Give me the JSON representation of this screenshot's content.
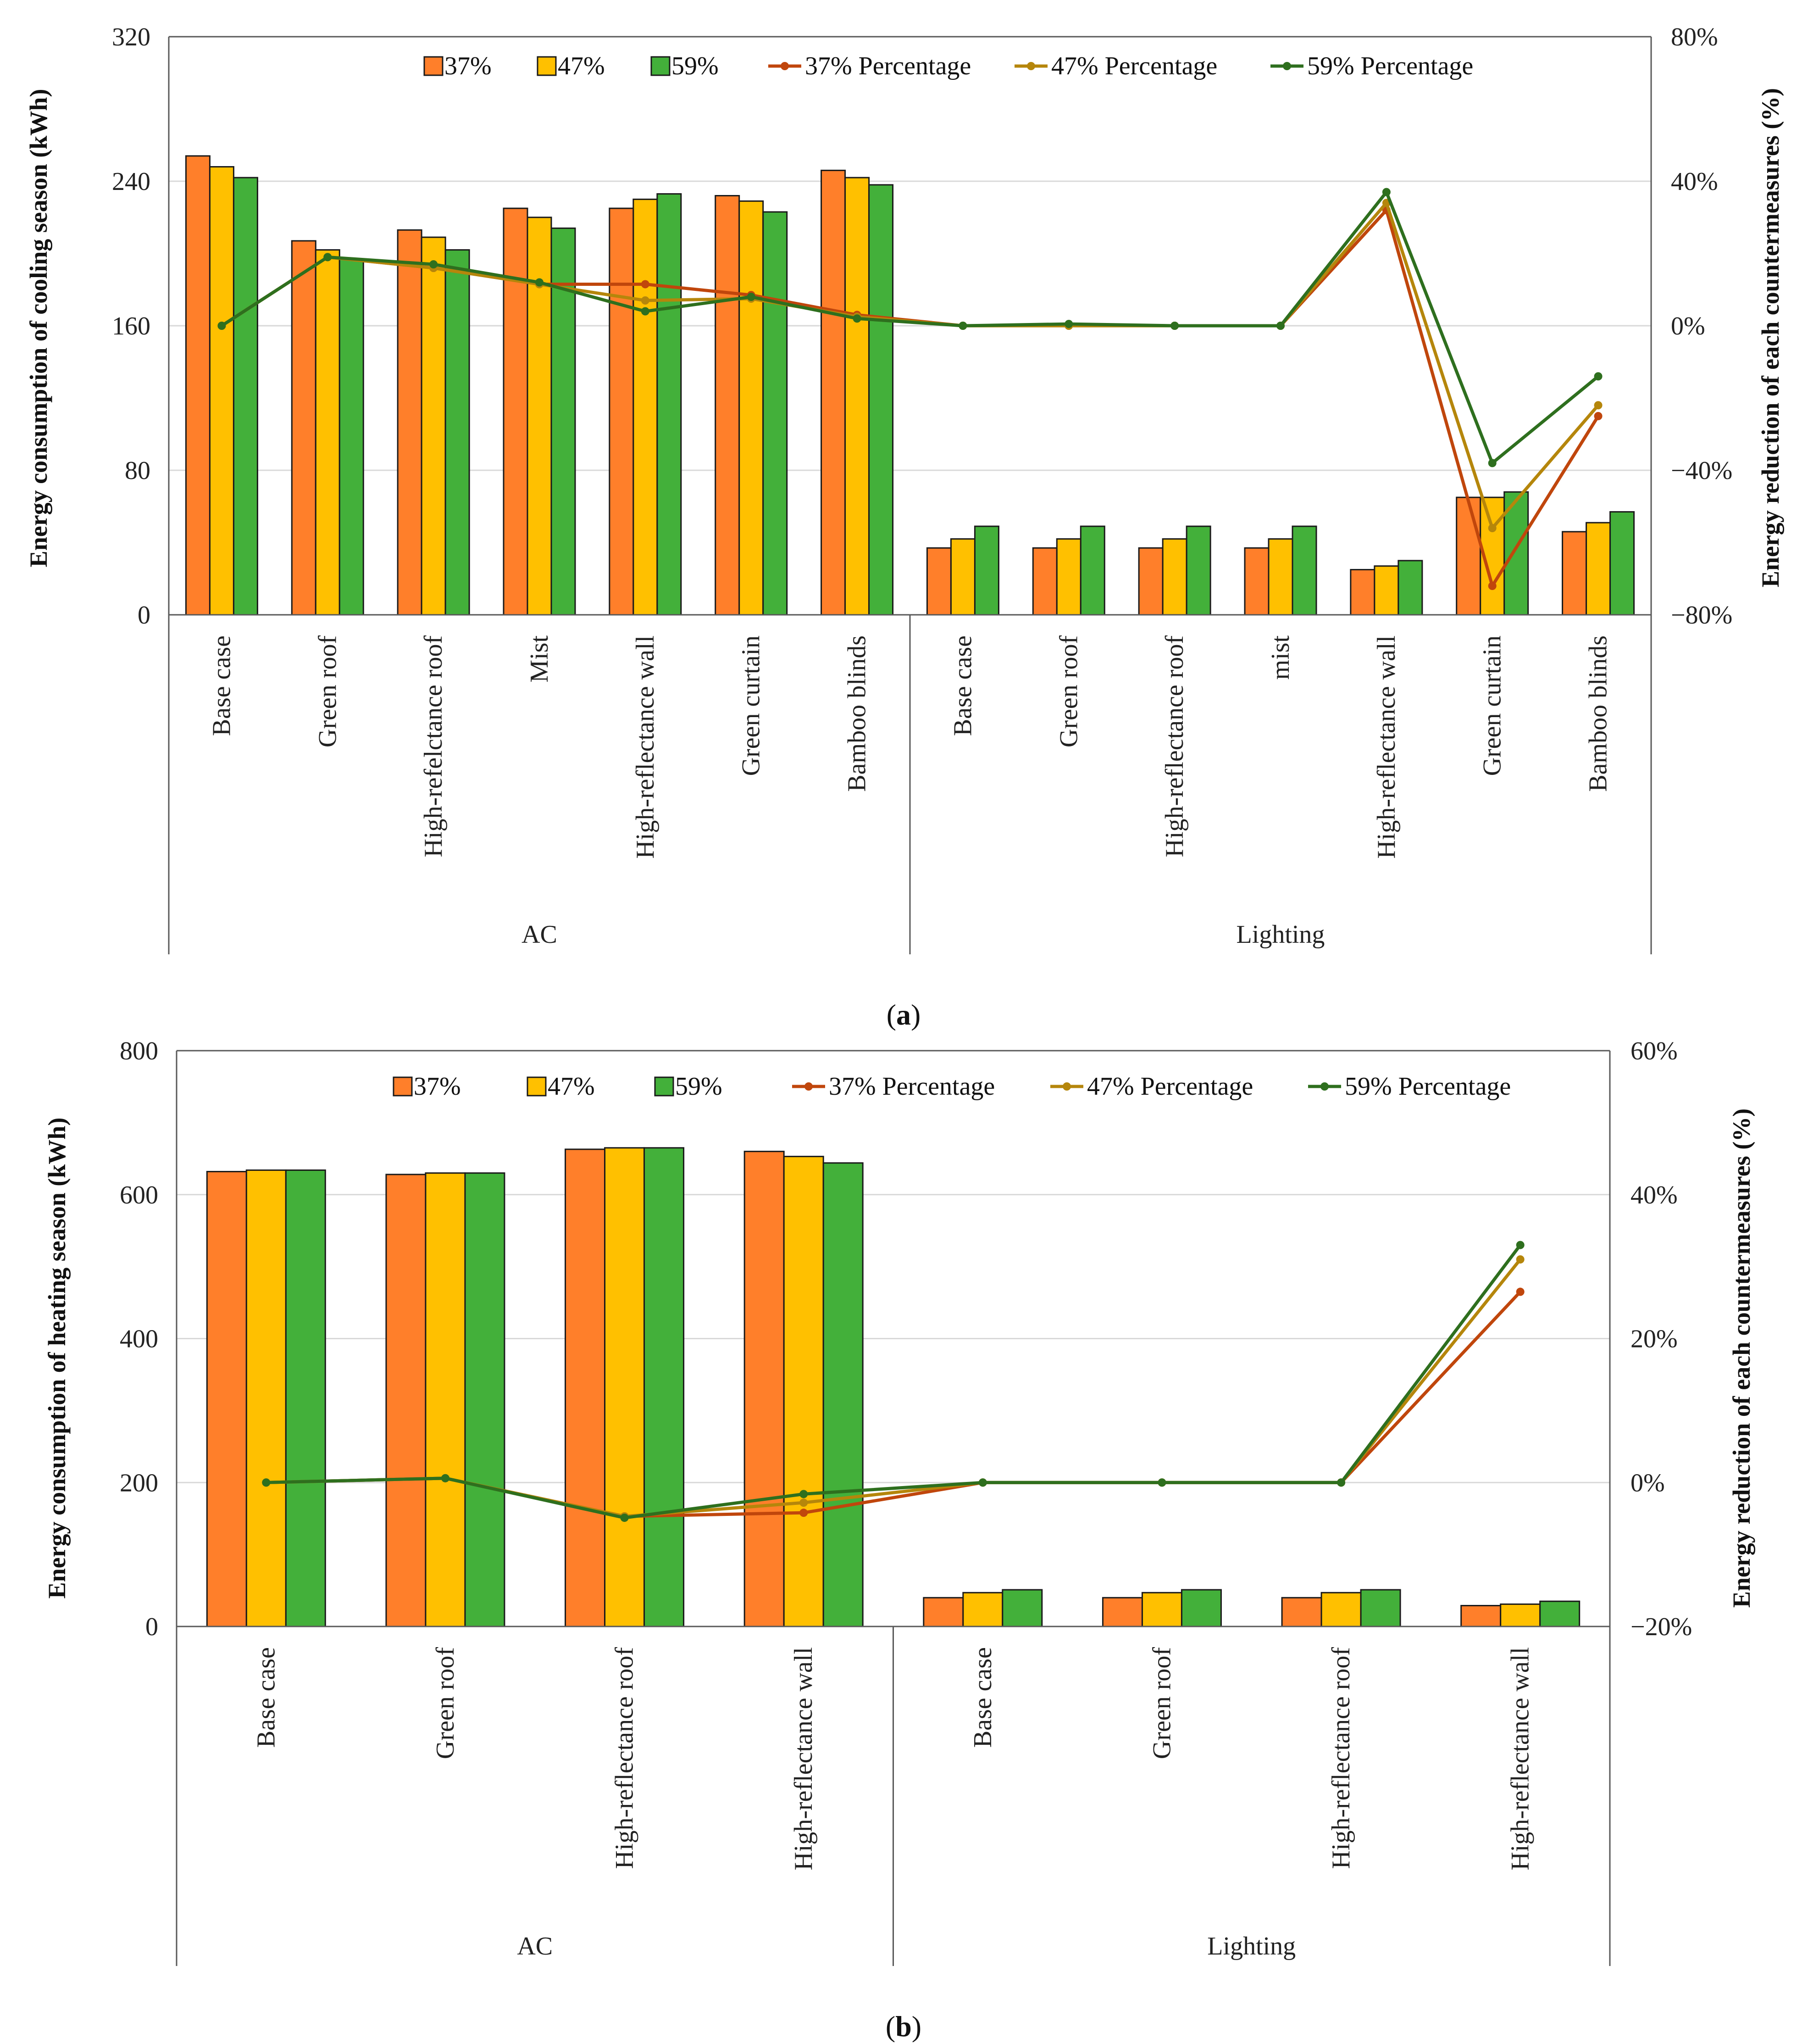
{
  "colors": {
    "s37": "#FF7F2A",
    "s47": "#FFC000",
    "s59": "#43B03A",
    "l37": "#C0460C",
    "l47": "#B5860B",
    "l59": "#2E6F1E",
    "grid": "#D9D9D9",
    "axis": "#595959"
  },
  "chart_data": [
    {
      "type": "bar",
      "caption_letter": "a",
      "ylabel": "Energy consumption of cooling season (kWh)",
      "y2label": "Energy reduction of each countermeasures (%)",
      "ylim": [
        0,
        320
      ],
      "yticks": [
        "0",
        "80",
        "160",
        "240",
        "320"
      ],
      "y2lim": [
        -80,
        80
      ],
      "y2ticks": [
        "−80%",
        "−40%",
        "0%",
        "40%",
        "80%"
      ],
      "grid": true,
      "legend_position": "top",
      "legend": [
        "37%",
        "47%",
        "59%",
        "37% Percentage",
        "47% Percentage",
        "59% Percentage"
      ],
      "groups": [
        {
          "label": "AC",
          "count": 7
        },
        {
          "label": "Lighting",
          "count": 7
        }
      ],
      "categories": [
        "Base case",
        "Green roof",
        "High-refelctance roof",
        "Mist",
        "High-reflectance wall",
        "Green curtain",
        "Bamboo blinds",
        "Base case",
        "Green roof",
        "High-reflectance roof",
        "mist",
        "High-reflectance wall",
        "Green curtain",
        "Bamboo blinds"
      ],
      "series": [
        {
          "name": "37%",
          "values": [
            254,
            207,
            213,
            225,
            225,
            232,
            246,
            37,
            37,
            37,
            37,
            25,
            65,
            46
          ]
        },
        {
          "name": "47%",
          "values": [
            248,
            202,
            209,
            220,
            230,
            229,
            242,
            42,
            42,
            42,
            42,
            27,
            65,
            51
          ]
        },
        {
          "name": "59%",
          "values": [
            242,
            197,
            202,
            214,
            233,
            223,
            238,
            49,
            49,
            49,
            49,
            30,
            68,
            57
          ]
        }
      ],
      "line_series": [
        {
          "name": "37% Percentage",
          "values": [
            0,
            19,
            16,
            11.5,
            11.5,
            8.5,
            3,
            0,
            0,
            0,
            0,
            32,
            -72,
            -25
          ]
        },
        {
          "name": "47% Percentage",
          "values": [
            0,
            19,
            16,
            11.5,
            7,
            7.5,
            2.5,
            0,
            0,
            0,
            0,
            34,
            -56,
            -22
          ]
        },
        {
          "name": "59% Percentage",
          "values": [
            0,
            19,
            17,
            12,
            4,
            8,
            2,
            0,
            0.5,
            0,
            0,
            37,
            -38,
            -14
          ]
        }
      ]
    },
    {
      "type": "bar",
      "caption_letter": "b",
      "ylabel": "Energy consumption of heating season (kWh)",
      "y2label": "Energy reduction of each countermeasures (%)",
      "ylim": [
        0,
        800
      ],
      "yticks": [
        "0",
        "200",
        "400",
        "600",
        "800"
      ],
      "y2lim": [
        -20,
        60
      ],
      "y2ticks": [
        "−20%",
        "0%",
        "20%",
        "40%",
        "60%"
      ],
      "grid": true,
      "legend_position": "top",
      "legend": [
        "37%",
        "47%",
        "59%",
        "37% Percentage",
        "47% Percentage",
        "59% Percentage"
      ],
      "groups": [
        {
          "label": "AC",
          "count": 4
        },
        {
          "label": "Lighting",
          "count": 4
        }
      ],
      "categories": [
        "Base case",
        "Green roof",
        "High-reflectance roof",
        "High-reflectance wall",
        "Base case",
        "Green roof",
        "High-reflectance roof",
        "High-reflectance wall"
      ],
      "series": [
        {
          "name": "37%",
          "values": [
            632,
            628,
            663,
            660,
            40,
            40,
            40,
            29
          ]
        },
        {
          "name": "47%",
          "values": [
            634,
            630,
            665,
            653,
            47,
            47,
            47,
            31
          ]
        },
        {
          "name": "59%",
          "values": [
            634,
            630,
            665,
            644,
            51,
            51,
            51,
            35
          ]
        }
      ],
      "line_series": [
        {
          "name": "37% Percentage",
          "values": [
            0,
            0.6,
            -4.7,
            -4.2,
            0,
            0,
            0,
            26.5
          ]
        },
        {
          "name": "47% Percentage",
          "values": [
            0,
            0.6,
            -4.7,
            -2.8,
            0,
            0,
            0,
            31
          ]
        },
        {
          "name": "59% Percentage",
          "values": [
            0,
            0.6,
            -4.9,
            -1.6,
            0,
            0,
            0,
            33
          ]
        }
      ]
    }
  ]
}
